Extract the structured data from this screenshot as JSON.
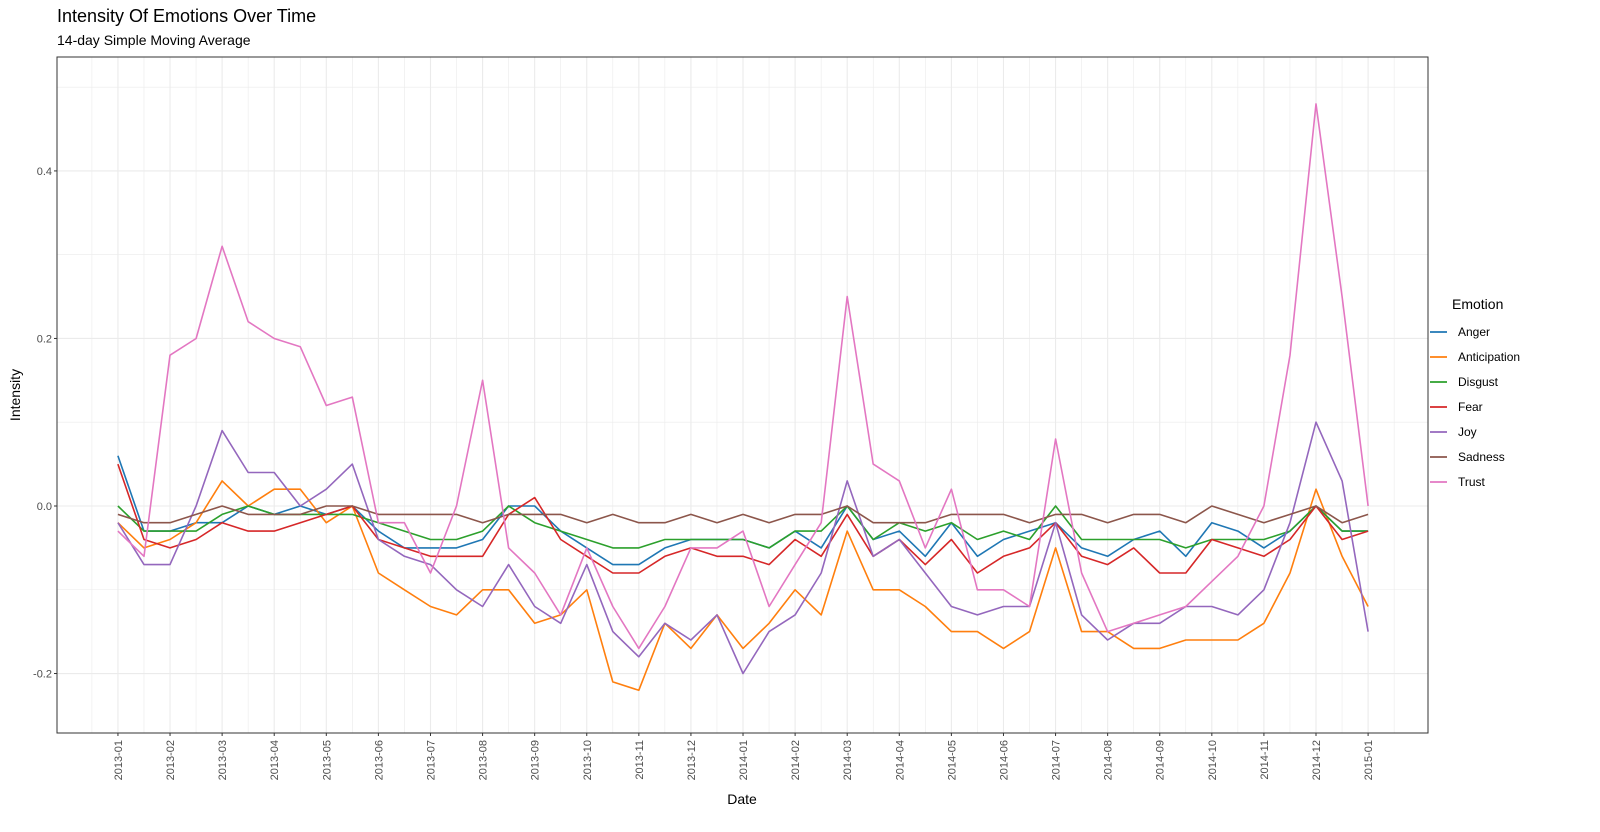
{
  "chart_data": {
    "type": "line",
    "title": "Intensity Of Emotions Over Time",
    "subtitle": "14-day Simple Moving Average",
    "xlabel": "Date",
    "ylabel": "Intensity",
    "ylim": [
      -0.271,
      0.536
    ],
    "xlim_months_from_2013_01": [
      -1.17,
      25.15
    ],
    "grid": true,
    "legend_title": "Emotion",
    "legend_position": "right",
    "x_tick_labels": [
      "2013-01",
      "2013-02",
      "2013-03",
      "2013-04",
      "2013-05",
      "2013-06",
      "2013-07",
      "2013-08",
      "2013-09",
      "2013-10",
      "2013-11",
      "2013-12",
      "2014-01",
      "2014-02",
      "2014-03",
      "2014-04",
      "2014-05",
      "2014-06",
      "2014-07",
      "2014-08",
      "2014-09",
      "2014-10",
      "2014-11",
      "2014-12",
      "2015-01"
    ],
    "y_ticks": [
      -0.2,
      0.0,
      0.2,
      0.4
    ],
    "y_tick_labels": [
      "-0.2",
      "0.0",
      "0.2",
      "0.4"
    ],
    "x_months_from_2013_01": [
      0,
      0.5,
      1,
      1.5,
      2,
      2.5,
      3,
      3.5,
      4,
      4.5,
      5,
      5.5,
      6,
      6.5,
      7,
      7.5,
      8,
      8.5,
      9,
      9.5,
      10,
      10.5,
      11,
      11.5,
      12,
      12.5,
      13,
      13.5,
      14,
      14.5,
      15,
      15.5,
      16,
      16.5,
      17,
      17.5,
      18,
      18.5,
      19,
      19.5,
      20,
      20.5,
      21,
      21.5,
      22,
      22.5,
      23,
      23.5,
      24
    ],
    "series": [
      {
        "name": "Anger",
        "color": "#1f77b4",
        "values": [
          0.06,
          -0.03,
          -0.03,
          -0.02,
          -0.02,
          0.0,
          -0.01,
          0.0,
          -0.01,
          0.0,
          -0.03,
          -0.05,
          -0.05,
          -0.05,
          -0.04,
          0.0,
          0.0,
          -0.03,
          -0.05,
          -0.07,
          -0.07,
          -0.05,
          -0.04,
          -0.04,
          -0.04,
          -0.05,
          -0.03,
          -0.05,
          0.0,
          -0.04,
          -0.03,
          -0.06,
          -0.02,
          -0.06,
          -0.04,
          -0.03,
          -0.02,
          -0.05,
          -0.06,
          -0.04,
          -0.03,
          -0.06,
          -0.02,
          -0.03,
          -0.05,
          -0.03,
          0.0,
          -0.03,
          -0.03
        ]
      },
      {
        "name": "Anticipation",
        "color": "#ff7f0e",
        "values": [
          -0.02,
          -0.05,
          -0.04,
          -0.02,
          0.03,
          0.0,
          0.02,
          0.02,
          -0.02,
          0.0,
          -0.08,
          -0.1,
          -0.12,
          -0.13,
          -0.1,
          -0.1,
          -0.14,
          -0.13,
          -0.1,
          -0.21,
          -0.22,
          -0.14,
          -0.17,
          -0.13,
          -0.17,
          -0.14,
          -0.1,
          -0.13,
          -0.03,
          -0.1,
          -0.1,
          -0.12,
          -0.15,
          -0.15,
          -0.17,
          -0.15,
          -0.05,
          -0.15,
          -0.15,
          -0.17,
          -0.17,
          -0.16,
          -0.16,
          -0.16,
          -0.14,
          -0.08,
          0.02,
          -0.06,
          -0.12
        ]
      },
      {
        "name": "Disgust",
        "color": "#2ca02c",
        "values": [
          0.0,
          -0.03,
          -0.03,
          -0.03,
          -0.01,
          0.0,
          -0.01,
          -0.01,
          -0.01,
          -0.01,
          -0.02,
          -0.03,
          -0.04,
          -0.04,
          -0.03,
          0.0,
          -0.02,
          -0.03,
          -0.04,
          -0.05,
          -0.05,
          -0.04,
          -0.04,
          -0.04,
          -0.04,
          -0.05,
          -0.03,
          -0.03,
          0.0,
          -0.04,
          -0.02,
          -0.03,
          -0.02,
          -0.04,
          -0.03,
          -0.04,
          0.0,
          -0.04,
          -0.04,
          -0.04,
          -0.04,
          -0.05,
          -0.04,
          -0.04,
          -0.04,
          -0.03,
          0.0,
          -0.03,
          -0.03
        ]
      },
      {
        "name": "Fear",
        "color": "#d62728",
        "values": [
          0.05,
          -0.04,
          -0.05,
          -0.04,
          -0.02,
          -0.03,
          -0.03,
          -0.02,
          -0.01,
          0.0,
          -0.04,
          -0.05,
          -0.06,
          -0.06,
          -0.06,
          -0.01,
          0.01,
          -0.04,
          -0.06,
          -0.08,
          -0.08,
          -0.06,
          -0.05,
          -0.06,
          -0.06,
          -0.07,
          -0.04,
          -0.06,
          -0.01,
          -0.06,
          -0.04,
          -0.07,
          -0.04,
          -0.08,
          -0.06,
          -0.05,
          -0.02,
          -0.06,
          -0.07,
          -0.05,
          -0.08,
          -0.08,
          -0.04,
          -0.05,
          -0.06,
          -0.04,
          0.0,
          -0.04,
          -0.03
        ]
      },
      {
        "name": "Joy",
        "color": "#9467bd",
        "values": [
          -0.02,
          -0.07,
          -0.07,
          0.0,
          0.09,
          0.04,
          0.04,
          0.0,
          0.02,
          0.05,
          -0.04,
          -0.06,
          -0.07,
          -0.1,
          -0.12,
          -0.07,
          -0.12,
          -0.14,
          -0.07,
          -0.15,
          -0.18,
          -0.14,
          -0.16,
          -0.13,
          -0.2,
          -0.15,
          -0.13,
          -0.08,
          0.03,
          -0.06,
          -0.04,
          -0.08,
          -0.12,
          -0.13,
          -0.12,
          -0.12,
          -0.02,
          -0.13,
          -0.16,
          -0.14,
          -0.14,
          -0.12,
          -0.12,
          -0.13,
          -0.1,
          -0.02,
          0.1,
          0.03,
          -0.15
        ]
      },
      {
        "name": "Sadness",
        "color": "#8c564b",
        "values": [
          -0.01,
          -0.02,
          -0.02,
          -0.01,
          0.0,
          -0.01,
          -0.01,
          -0.01,
          0.0,
          0.0,
          -0.01,
          -0.01,
          -0.01,
          -0.01,
          -0.02,
          -0.01,
          -0.01,
          -0.01,
          -0.02,
          -0.01,
          -0.02,
          -0.02,
          -0.01,
          -0.02,
          -0.01,
          -0.02,
          -0.01,
          -0.01,
          0.0,
          -0.02,
          -0.02,
          -0.02,
          -0.01,
          -0.01,
          -0.01,
          -0.02,
          -0.01,
          -0.01,
          -0.02,
          -0.01,
          -0.01,
          -0.02,
          0.0,
          -0.01,
          -0.02,
          -0.01,
          0.0,
          -0.02,
          -0.01
        ]
      },
      {
        "name": "Trust",
        "color": "#e377c2",
        "values": [
          -0.03,
          -0.06,
          0.18,
          0.2,
          0.31,
          0.22,
          0.2,
          0.19,
          0.12,
          0.13,
          -0.02,
          -0.02,
          -0.08,
          0.0,
          0.15,
          -0.05,
          -0.08,
          -0.13,
          -0.05,
          -0.12,
          -0.17,
          -0.12,
          -0.05,
          -0.05,
          -0.03,
          -0.12,
          -0.07,
          -0.02,
          0.25,
          0.05,
          0.03,
          -0.05,
          0.02,
          -0.1,
          -0.1,
          -0.12,
          0.08,
          -0.08,
          -0.15,
          -0.14,
          -0.13,
          -0.12,
          -0.09,
          -0.06,
          0.0,
          0.18,
          0.48,
          0.25,
          0.0
        ]
      }
    ]
  }
}
